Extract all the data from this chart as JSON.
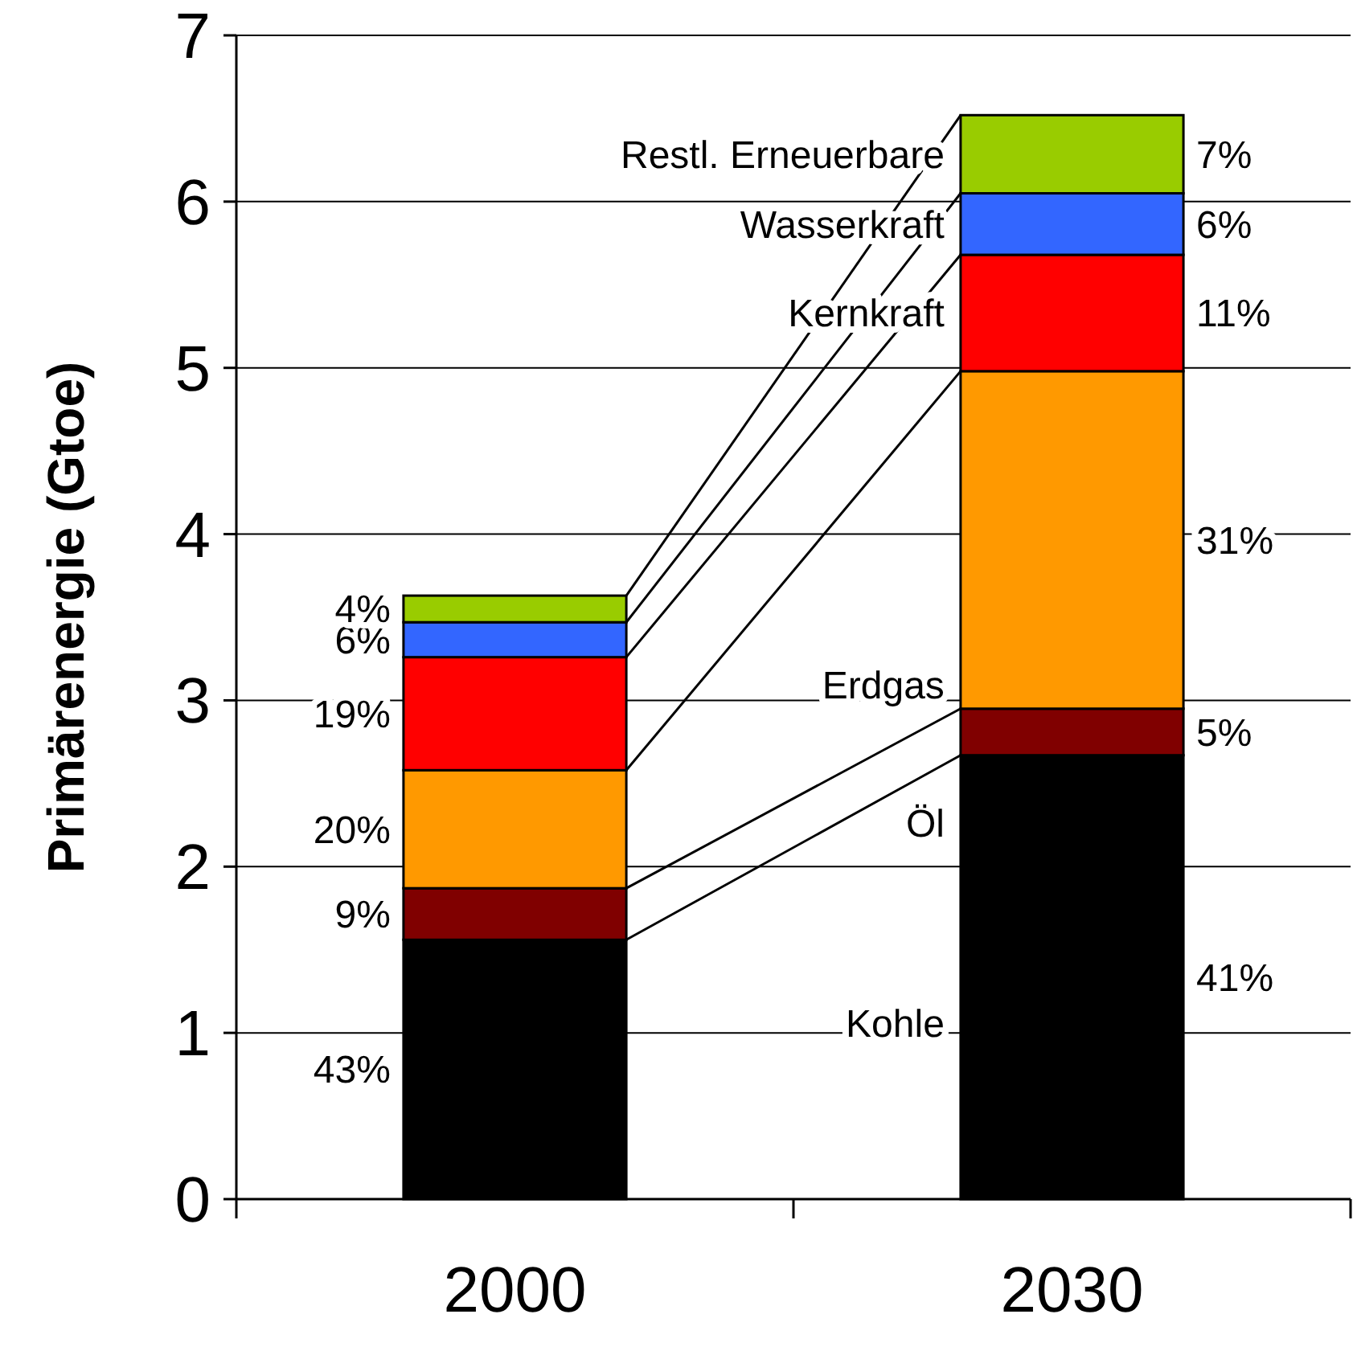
{
  "chart_data": {
    "type": "bar",
    "stacked": true,
    "ylabel": "Primärenergie (Gtoe)",
    "categories": [
      "2000",
      "2030"
    ],
    "series": [
      {
        "name": "Kohle",
        "color": "#000000",
        "values": [
          1.56,
          2.67
        ]
      },
      {
        "name": "Öl",
        "color": "#800000",
        "values": [
          0.31,
          0.28
        ]
      },
      {
        "name": "Erdgas",
        "color": "#ff9900",
        "values": [
          0.71,
          2.03
        ]
      },
      {
        "name": "Kernkraft",
        "color": "#ff0000",
        "values": [
          0.68,
          0.7
        ]
      },
      {
        "name": "Wasserkraft",
        "color": "#3366ff",
        "values": [
          0.21,
          0.37
        ]
      },
      {
        "name": "Restl. Erneuerbare",
        "color": "#99cc00",
        "values": [
          0.16,
          0.47
        ]
      }
    ],
    "annotations": [
      "43%",
      "9%",
      "20%",
      "19%",
      "6%",
      "4%",
      "41%",
      "5%",
      "31%",
      "11%",
      "6%",
      "7%"
    ],
    "ylim": [
      0,
      7
    ],
    "yticks": [
      0,
      1,
      2,
      3,
      4,
      5,
      6,
      7
    ],
    "grid": "y",
    "legend": false
  }
}
